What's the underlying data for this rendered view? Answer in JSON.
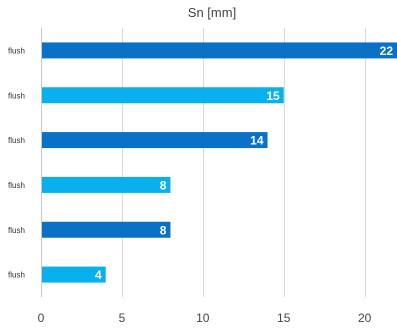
{
  "chart_data": {
    "type": "bar",
    "orientation": "horizontal",
    "title": "Sn [mm]",
    "xlabel": "",
    "ylabel": "",
    "categories": [
      "flush",
      "flush",
      "flush",
      "flush",
      "flush",
      "flush"
    ],
    "values": [
      22,
      15,
      14,
      8,
      8,
      4
    ],
    "data_labels": [
      "22",
      "15",
      "14",
      "8",
      "8",
      "4"
    ],
    "colors": [
      "#0a71c6",
      "#08b0ee",
      "#0a71c6",
      "#08b0ee",
      "#0a71c6",
      "#08b0ee"
    ],
    "xlim": [
      0,
      22
    ],
    "xticks": [
      0,
      5,
      10,
      15,
      20
    ],
    "xtick_labels": [
      "0",
      "5",
      "10",
      "15",
      "20"
    ],
    "grid": true,
    "legend": "none"
  }
}
